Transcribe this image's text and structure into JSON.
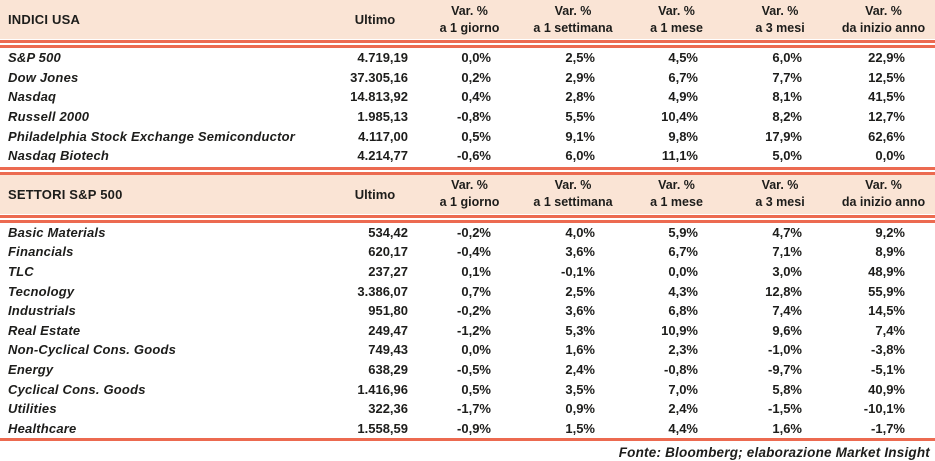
{
  "colors": {
    "header_background": "#FAE4D5",
    "rule_red": "#EC6A50",
    "text": "#1D1D1B"
  },
  "columns": {
    "value_label": "Ultimo",
    "var_label": "Var. %",
    "sub_labels": [
      "a 1 giorno",
      "a 1 settimana",
      "a 1 mese",
      "a 3 mesi",
      "da inizio anno"
    ]
  },
  "tables": [
    {
      "title": "INDICI USA",
      "rows": [
        {
          "name": "S&P 500",
          "ultimo": "4.719,19",
          "vars": [
            "0,0%",
            "2,5%",
            "4,5%",
            "6,0%",
            "22,9%"
          ]
        },
        {
          "name": "Dow Jones",
          "ultimo": "37.305,16",
          "vars": [
            "0,2%",
            "2,9%",
            "6,7%",
            "7,7%",
            "12,5%"
          ]
        },
        {
          "name": "Nasdaq",
          "ultimo": "14.813,92",
          "vars": [
            "0,4%",
            "2,8%",
            "4,9%",
            "8,1%",
            "41,5%"
          ]
        },
        {
          "name": "Russell 2000",
          "ultimo": "1.985,13",
          "vars": [
            "-0,8%",
            "5,5%",
            "10,4%",
            "8,2%",
            "12,7%"
          ]
        },
        {
          "name": "Philadelphia Stock Exchange Semiconductor",
          "ultimo": "4.117,00",
          "vars": [
            "0,5%",
            "9,1%",
            "9,8%",
            "17,9%",
            "62,6%"
          ]
        },
        {
          "name": "Nasdaq Biotech",
          "ultimo": "4.214,77",
          "vars": [
            "-0,6%",
            "6,0%",
            "11,1%",
            "5,0%",
            "0,0%"
          ]
        }
      ]
    },
    {
      "title": "SETTORI S&P 500",
      "rows": [
        {
          "name": "Basic Materials",
          "ultimo": "534,42",
          "vars": [
            "-0,2%",
            "4,0%",
            "5,9%",
            "4,7%",
            "9,2%"
          ]
        },
        {
          "name": "Financials",
          "ultimo": "620,17",
          "vars": [
            "-0,4%",
            "3,6%",
            "6,7%",
            "7,1%",
            "8,9%"
          ]
        },
        {
          "name": "TLC",
          "ultimo": "237,27",
          "vars": [
            "0,1%",
            "-0,1%",
            "0,0%",
            "3,0%",
            "48,9%"
          ]
        },
        {
          "name": "Tecnology",
          "ultimo": "3.386,07",
          "vars": [
            "0,7%",
            "2,5%",
            "4,3%",
            "12,8%",
            "55,9%"
          ]
        },
        {
          "name": "Industrials",
          "ultimo": "951,80",
          "vars": [
            "-0,2%",
            "3,6%",
            "6,8%",
            "7,4%",
            "14,5%"
          ]
        },
        {
          "name": "Real Estate",
          "ultimo": "249,47",
          "vars": [
            "-1,2%",
            "5,3%",
            "10,9%",
            "9,6%",
            "7,4%"
          ]
        },
        {
          "name": "Non-Cyclical Cons. Goods",
          "ultimo": "749,43",
          "vars": [
            "0,0%",
            "1,6%",
            "2,3%",
            "-1,0%",
            "-3,8%"
          ]
        },
        {
          "name": "Energy",
          "ultimo": "638,29",
          "vars": [
            "-0,5%",
            "2,4%",
            "-0,8%",
            "-9,7%",
            "-5,1%"
          ]
        },
        {
          "name": "Cyclical Cons. Goods",
          "ultimo": "1.416,96",
          "vars": [
            "0,5%",
            "3,5%",
            "7,0%",
            "5,8%",
            "40,9%"
          ]
        },
        {
          "name": "Utilities",
          "ultimo": "322,36",
          "vars": [
            "-1,7%",
            "0,9%",
            "2,4%",
            "-1,5%",
            "-10,1%"
          ]
        },
        {
          "name": "Healthcare",
          "ultimo": "1.558,59",
          "vars": [
            "-0,9%",
            "1,5%",
            "4,4%",
            "1,6%",
            "-1,7%"
          ]
        }
      ]
    }
  ],
  "footer": {
    "source": "Fonte: Bloomberg; elaborazione Market Insight"
  }
}
